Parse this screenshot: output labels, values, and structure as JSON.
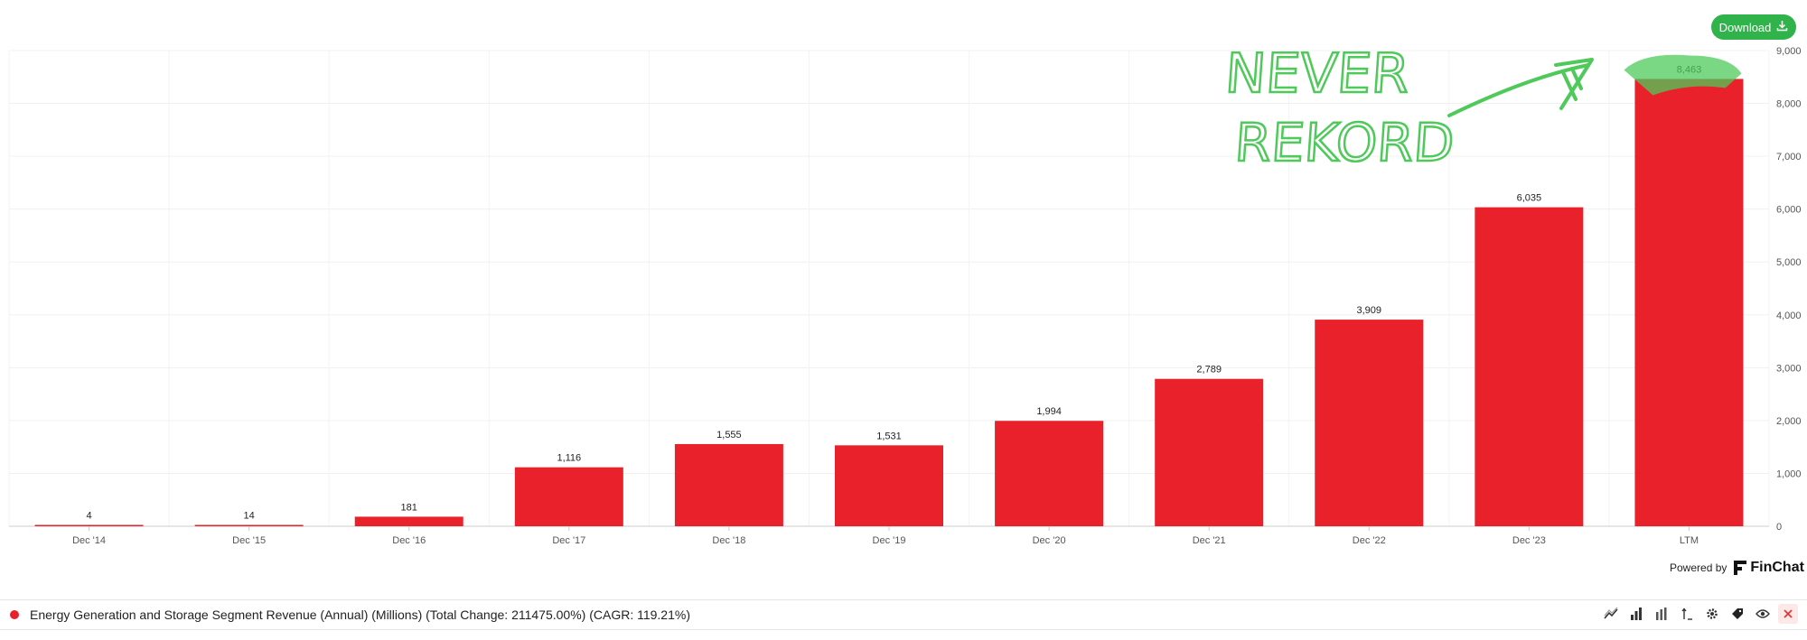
{
  "download_label": "Download",
  "powered_by": "Powered by",
  "brand_name": "FinChat",
  "legend": {
    "text": "Energy Generation and Storage Segment Revenue (Annual) (Millions) (Total Change: 211475.00%) (CAGR: 119.21%)",
    "color": "#e8212a"
  },
  "annotation": {
    "line1": "NEVER",
    "line2": "REKORD",
    "color": "#4ec95a"
  },
  "toolbar_icons": [
    "line-chart-icon",
    "bar-chart-icon",
    "grouped-bar-icon",
    "sort-icon",
    "gear-icon",
    "tag-icon",
    "eye-icon",
    "close-icon"
  ],
  "chart_data": {
    "type": "bar",
    "categories": [
      "Dec '14",
      "Dec '15",
      "Dec '16",
      "Dec '17",
      "Dec '18",
      "Dec '19",
      "Dec '20",
      "Dec '21",
      "Dec '22",
      "Dec '23",
      "LTM"
    ],
    "values": [
      4,
      14,
      181,
      1116,
      1555,
      1531,
      1994,
      2789,
      3909,
      6035,
      8463
    ],
    "value_labels": [
      "4",
      "14",
      "181",
      "1,116",
      "1,555",
      "1,531",
      "1,994",
      "2,789",
      "3,909",
      "6,035",
      "8,463"
    ],
    "ylim": [
      0,
      9000
    ],
    "y_ticks": [
      0,
      1000,
      2000,
      3000,
      4000,
      5000,
      6000,
      7000,
      8000,
      9000
    ],
    "y_tick_labels": [
      "0",
      "1,000",
      "2,000",
      "3,000",
      "4,000",
      "5,000",
      "6,000",
      "7,000",
      "8,000",
      "9,000"
    ],
    "y_axis_side": "right",
    "grid": true,
    "bar_color": "#e8212a"
  }
}
